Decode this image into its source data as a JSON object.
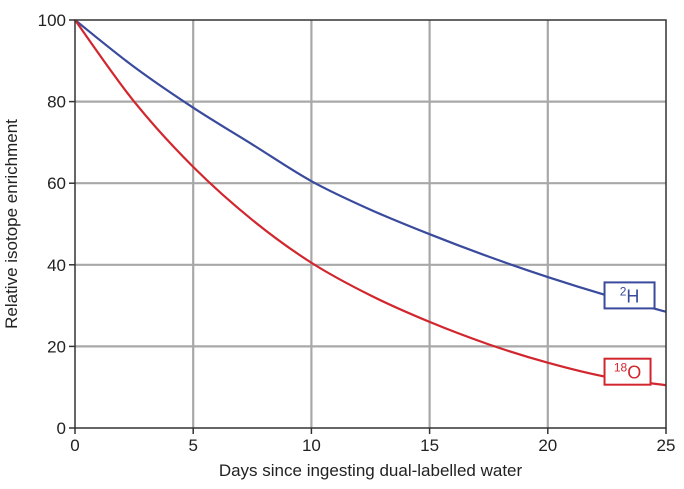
{
  "chart_data": {
    "type": "line",
    "title": "",
    "xlabel": "Days since ingesting dual-labelled water",
    "ylabel": "Relative isotope enrichment",
    "xlim": [
      0,
      25
    ],
    "ylim": [
      0,
      100
    ],
    "xticks": [
      "0",
      "5",
      "10",
      "15",
      "20",
      "25"
    ],
    "yticks": [
      "0",
      "20",
      "40",
      "60",
      "80",
      "100"
    ],
    "grid": true,
    "series": [
      {
        "name": "2H",
        "label_sup": "2",
        "label_base": "H",
        "color": "#3a4a9c",
        "x": [
          0,
          2.5,
          5,
          7.5,
          10,
          12.5,
          15,
          17.5,
          20,
          22.5,
          25
        ],
        "y": [
          100,
          88.5,
          78.5,
          69.5,
          60.5,
          53.5,
          47.5,
          42,
          37,
          32.5,
          28.5
        ]
      },
      {
        "name": "18O",
        "label_sup": "18",
        "label_base": "O",
        "color": "#d2262e",
        "x": [
          0,
          2.5,
          5,
          7.5,
          10,
          12.5,
          15,
          17.5,
          20,
          22.5,
          25
        ],
        "y": [
          100,
          80,
          64,
          51,
          40.5,
          32.5,
          26,
          20.5,
          16,
          12.5,
          10.5
        ]
      }
    ]
  }
}
